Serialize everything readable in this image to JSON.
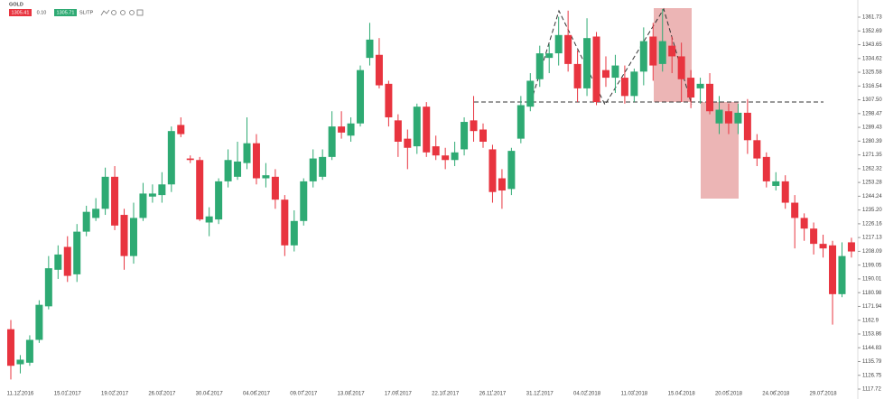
{
  "toolbar": {
    "symbol": "GOLD",
    "bid": "1305.41",
    "lot": "0.10",
    "ask": "1305.71",
    "sltp": "SL/TP"
  },
  "chart_data": {
    "type": "candlestick",
    "categories": [
      null,
      "11.12.2016",
      null,
      null,
      null,
      null,
      "15.01.2017",
      null,
      null,
      null,
      null,
      "19.02.2017",
      null,
      null,
      null,
      null,
      "26.03.2017",
      null,
      null,
      null,
      null,
      "30.04.2017",
      null,
      null,
      null,
      null,
      "04.06.2017",
      null,
      null,
      null,
      null,
      "09.07.2017",
      null,
      null,
      null,
      null,
      "13.08.2017",
      null,
      null,
      null,
      null,
      "17.09.2017",
      null,
      null,
      null,
      null,
      "22.10.2017",
      null,
      null,
      null,
      null,
      "26.11.2017",
      null,
      null,
      null,
      null,
      "31.12.2017",
      null,
      null,
      null,
      null,
      "04.02.2018",
      null,
      null,
      null,
      null,
      "11.03.2018",
      null,
      null,
      null,
      null,
      "15.04.2018",
      null,
      null,
      null,
      null,
      "20.05.2018",
      null,
      null,
      null,
      null,
      "24.06.2018",
      null,
      null,
      null,
      null,
      "29.07.2018",
      null,
      null,
      null
    ],
    "open": [
      1157,
      1134,
      1135,
      1150,
      1172,
      1196,
      1211,
      1193,
      1221,
      1230,
      1236,
      1257,
      1232,
      1205,
      1230,
      1244,
      1245,
      1252,
      1291,
      1269,
      1268,
      1227,
      1229,
      1254,
      1257,
      1266,
      1279,
      1256,
      1257,
      1242,
      1212,
      1228,
      1254,
      1257,
      1270,
      1290,
      1284,
      1292,
      1335,
      1337,
      1318,
      1294,
      1282,
      1277,
      1303,
      1277,
      1271,
      1268,
      1275,
      1294,
      1288,
      1275,
      1256,
      1249,
      1282,
      1303,
      1321,
      1335,
      1338,
      1350,
      1331,
      1315,
      1349,
      1327,
      1322,
      1322,
      1310,
      1326,
      1349,
      1331,
      1343,
      1336,
      1322,
      1315,
      1318,
      1292,
      1300,
      1292,
      1299,
      1281,
      1270,
      1251,
      1254,
      1240,
      1230,
      1223,
      1213,
      1212,
      1180,
      1214
    ],
    "high": [
      1163,
      1140,
      1153,
      1176,
      1205,
      1212,
      1218,
      1226,
      1238,
      1243,
      1263,
      1264,
      1236,
      1240,
      1253,
      1252,
      1260,
      1290,
      1296,
      1271,
      1270,
      1237,
      1256,
      1275,
      1280,
      1296,
      1285,
      1266,
      1262,
      1245,
      1235,
      1256,
      1275,
      1275,
      1300,
      1300,
      1296,
      1330,
      1358,
      1348,
      1320,
      1298,
      1288,
      1305,
      1306,
      1284,
      1276,
      1280,
      1296,
      1310,
      1292,
      1278,
      1262,
      1276,
      1310,
      1325,
      1343,
      1344,
      1362,
      1366,
      1340,
      1361,
      1352,
      1336,
      1337,
      1330,
      1328,
      1355,
      1358,
      1367,
      1349,
      1345,
      1327,
      1322,
      1325,
      1310,
      1305,
      1305,
      1308,
      1285,
      1273,
      1260,
      1258,
      1245,
      1233,
      1227,
      1219,
      1215,
      1214,
      1217
    ],
    "low": [
      1124,
      1128,
      1133,
      1148,
      1170,
      1190,
      1188,
      1188,
      1218,
      1228,
      1232,
      1222,
      1196,
      1200,
      1228,
      1240,
      1240,
      1247,
      1283,
      1266,
      1228,
      1218,
      1226,
      1250,
      1255,
      1262,
      1252,
      1250,
      1236,
      1205,
      1208,
      1225,
      1250,
      1255,
      1268,
      1282,
      1280,
      1290,
      1330,
      1315,
      1290,
      1270,
      1262,
      1272,
      1270,
      1268,
      1262,
      1264,
      1271,
      1280,
      1276,
      1240,
      1236,
      1245,
      1279,
      1300,
      1316,
      1325,
      1330,
      1326,
      1306,
      1310,
      1304,
      1316,
      1312,
      1305,
      1306,
      1317,
      1320,
      1326,
      1325,
      1306,
      1302,
      1305,
      1298,
      1285,
      1285,
      1285,
      1272,
      1264,
      1250,
      1248,
      1236,
      1210,
      1215,
      1206,
      1204,
      1160,
      1178,
      1204
    ],
    "close": [
      1133,
      1137,
      1150,
      1173,
      1197,
      1206,
      1192,
      1221,
      1234,
      1236,
      1257,
      1225,
      1205,
      1230,
      1246,
      1246,
      1252,
      1287,
      1285,
      1268,
      1229,
      1231,
      1254,
      1268,
      1267,
      1279,
      1256,
      1258,
      1242,
      1212,
      1228,
      1254,
      1269,
      1270,
      1290,
      1286,
      1292,
      1327,
      1347,
      1317,
      1296,
      1280,
      1276,
      1303,
      1273,
      1271,
      1268,
      1273,
      1293,
      1287,
      1280,
      1247,
      1248,
      1274,
      1304,
      1320,
      1338,
      1338,
      1350,
      1331,
      1315,
      1348,
      1306,
      1322,
      1330,
      1310,
      1326,
      1346,
      1330,
      1346,
      1336,
      1321,
      1309,
      1318,
      1300,
      1301,
      1292,
      1299,
      1281,
      1269,
      1254,
      1254,
      1240,
      1230,
      1223,
      1213,
      1210,
      1180,
      1205,
      1208
    ],
    "up_color": "#2eaa73",
    "down_color": "#e8343f",
    "ylim": [
      1117.72,
      1361.73
    ],
    "yticks": [
      1361.73,
      1352.69,
      1343.65,
      1334.62,
      1325.58,
      1316.54,
      {
        "value": 1307.5,
        "label": "1307.50"
      },
      1298.47,
      1289.43,
      1280.39,
      1271.35,
      1262.32,
      1253.28,
      1244.24,
      {
        "value": 1235.2,
        "label": "1235.20"
      },
      1226.16,
      1217.13,
      1208.09,
      1199.05,
      1190.01,
      1180.98,
      1171.94,
      1162.9,
      1153.86,
      1144.83,
      1135.79,
      1126.75,
      1117.72
    ]
  }
}
